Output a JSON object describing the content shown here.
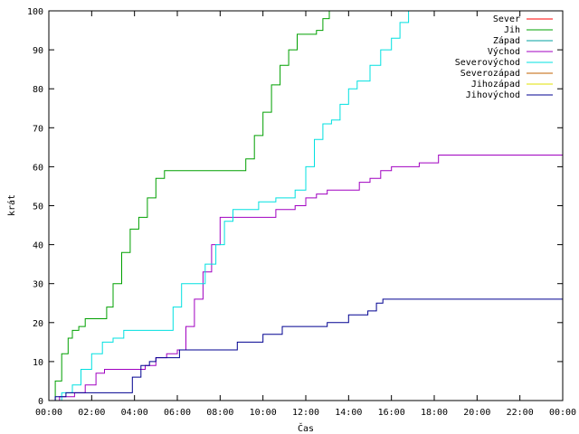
{
  "chart_data": {
    "type": "line",
    "title": "",
    "xlabel": "Čas",
    "ylabel": "krát",
    "xlim": [
      0,
      24
    ],
    "ylim": [
      0,
      100
    ],
    "x_ticks": [
      {
        "v": 0,
        "label": "00:00"
      },
      {
        "v": 2,
        "label": "02:00"
      },
      {
        "v": 4,
        "label": "04:00"
      },
      {
        "v": 6,
        "label": "06:00"
      },
      {
        "v": 8,
        "label": "08:00"
      },
      {
        "v": 10,
        "label": "10:00"
      },
      {
        "v": 12,
        "label": "12:00"
      },
      {
        "v": 14,
        "label": "14:00"
      },
      {
        "v": 16,
        "label": "16:00"
      },
      {
        "v": 18,
        "label": "18:00"
      },
      {
        "v": 20,
        "label": "20:00"
      },
      {
        "v": 22,
        "label": "22:00"
      },
      {
        "v": 24,
        "label": "00:00"
      }
    ],
    "y_ticks": [
      0,
      10,
      20,
      30,
      40,
      50,
      60,
      70,
      80,
      90,
      100
    ],
    "grid": false,
    "legend_position": "top-right",
    "series": [
      {
        "name": "Sever",
        "color": "#ff0000",
        "points": []
      },
      {
        "name": "Jih",
        "color": "#00a000",
        "points": [
          [
            0.0,
            0
          ],
          [
            0.3,
            5
          ],
          [
            0.6,
            12
          ],
          [
            0.9,
            16
          ],
          [
            1.1,
            18
          ],
          [
            1.4,
            19
          ],
          [
            1.7,
            21
          ],
          [
            2.4,
            21
          ],
          [
            2.7,
            24
          ],
          [
            3.0,
            30
          ],
          [
            3.4,
            38
          ],
          [
            3.8,
            44
          ],
          [
            4.2,
            47
          ],
          [
            4.6,
            52
          ],
          [
            5.0,
            57
          ],
          [
            5.4,
            59
          ],
          [
            8.9,
            59
          ],
          [
            9.2,
            62
          ],
          [
            9.6,
            68
          ],
          [
            10.0,
            74
          ],
          [
            10.4,
            81
          ],
          [
            10.8,
            86
          ],
          [
            11.2,
            90
          ],
          [
            11.6,
            94
          ],
          [
            12.5,
            95
          ],
          [
            12.8,
            98
          ],
          [
            13.1,
            100
          ]
        ]
      },
      {
        "name": "Západ",
        "color": "#00a0a0",
        "points": []
      },
      {
        "name": "Východ",
        "color": "#a000c0",
        "points": [
          [
            0.0,
            0
          ],
          [
            0.5,
            1
          ],
          [
            1.2,
            2
          ],
          [
            1.7,
            4
          ],
          [
            2.2,
            7
          ],
          [
            2.6,
            8
          ],
          [
            4.0,
            8
          ],
          [
            4.5,
            9
          ],
          [
            5.0,
            11
          ],
          [
            5.5,
            12
          ],
          [
            6.0,
            13
          ],
          [
            6.4,
            19
          ],
          [
            6.8,
            26
          ],
          [
            7.2,
            33
          ],
          [
            7.6,
            40
          ],
          [
            8.0,
            47
          ],
          [
            9.0,
            47
          ],
          [
            10.3,
            47
          ],
          [
            10.6,
            49
          ],
          [
            11.5,
            50
          ],
          [
            12.0,
            52
          ],
          [
            12.5,
            53
          ],
          [
            13.0,
            54
          ],
          [
            14.0,
            54
          ],
          [
            14.5,
            56
          ],
          [
            15.0,
            57
          ],
          [
            15.5,
            59
          ],
          [
            16.0,
            60
          ],
          [
            17.0,
            60
          ],
          [
            17.3,
            61
          ],
          [
            18.2,
            63
          ],
          [
            23.8,
            63
          ],
          [
            24.0,
            64
          ]
        ]
      },
      {
        "name": "Severovýchod",
        "color": "#00e0e0",
        "points": [
          [
            0.0,
            0
          ],
          [
            0.6,
            2
          ],
          [
            1.1,
            4
          ],
          [
            1.5,
            8
          ],
          [
            2.0,
            12
          ],
          [
            2.5,
            15
          ],
          [
            3.0,
            16
          ],
          [
            3.5,
            18
          ],
          [
            5.3,
            18
          ],
          [
            5.8,
            24
          ],
          [
            6.2,
            30
          ],
          [
            7.0,
            30
          ],
          [
            7.3,
            35
          ],
          [
            7.8,
            40
          ],
          [
            8.2,
            46
          ],
          [
            8.6,
            49
          ],
          [
            9.4,
            49
          ],
          [
            9.8,
            51
          ],
          [
            10.6,
            52
          ],
          [
            11.5,
            54
          ],
          [
            12.0,
            60
          ],
          [
            12.4,
            67
          ],
          [
            12.8,
            71
          ],
          [
            13.2,
            72
          ],
          [
            13.6,
            76
          ],
          [
            14.0,
            80
          ],
          [
            14.4,
            82
          ],
          [
            15.0,
            86
          ],
          [
            15.5,
            90
          ],
          [
            16.0,
            93
          ],
          [
            16.4,
            97
          ],
          [
            16.8,
            100
          ]
        ]
      },
      {
        "name": "Severozápad",
        "color": "#c06000",
        "points": []
      },
      {
        "name": "Jihozápad",
        "color": "#e0e000",
        "points": []
      },
      {
        "name": "Jihovýchod",
        "color": "#000090",
        "points": [
          [
            0.0,
            0
          ],
          [
            0.3,
            1
          ],
          [
            0.8,
            2
          ],
          [
            3.8,
            2
          ],
          [
            3.9,
            6
          ],
          [
            4.3,
            9
          ],
          [
            4.7,
            10
          ],
          [
            5.0,
            11
          ],
          [
            6.0,
            11
          ],
          [
            6.1,
            13
          ],
          [
            8.6,
            13
          ],
          [
            8.8,
            15
          ],
          [
            9.8,
            15
          ],
          [
            10.0,
            17
          ],
          [
            10.6,
            17
          ],
          [
            10.9,
            19
          ],
          [
            12.8,
            19
          ],
          [
            13.0,
            20
          ],
          [
            13.8,
            20
          ],
          [
            14.0,
            22
          ],
          [
            14.9,
            23
          ],
          [
            15.3,
            25
          ],
          [
            15.6,
            26
          ],
          [
            24.0,
            26
          ]
        ]
      }
    ]
  }
}
